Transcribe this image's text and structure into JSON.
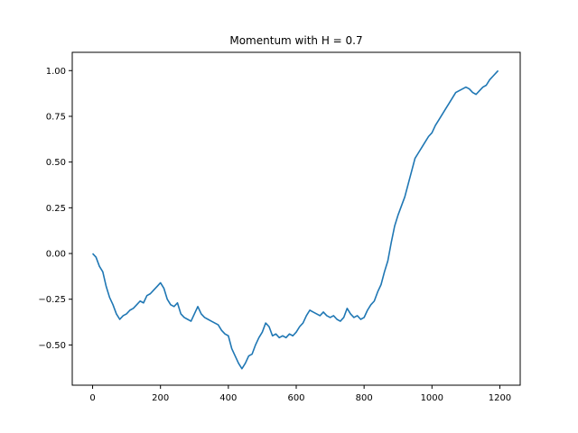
{
  "chart_data": {
    "type": "line",
    "title": "Momentum with H = 0.7",
    "xlabel": "",
    "ylabel": "",
    "xlim": [
      -60,
      1260
    ],
    "ylim": [
      -0.72,
      1.1
    ],
    "grid": false,
    "x_ticks": [
      0,
      200,
      400,
      600,
      800,
      1000,
      1200
    ],
    "x_tick_labels": [
      "0",
      "200",
      "400",
      "600",
      "800",
      "1000",
      "1200"
    ],
    "y_ticks": [
      -0.5,
      -0.25,
      0.0,
      0.25,
      0.5,
      0.75,
      1.0
    ],
    "y_tick_labels": [
      "−0.50",
      "−0.25",
      "0.00",
      "0.25",
      "0.50",
      "0.75",
      "1.00"
    ],
    "series": [
      {
        "color": "#1f77b4",
        "x": [
          0,
          10,
          20,
          30,
          40,
          50,
          60,
          70,
          80,
          90,
          100,
          110,
          120,
          130,
          140,
          150,
          160,
          170,
          180,
          190,
          200,
          210,
          220,
          230,
          240,
          250,
          260,
          270,
          280,
          290,
          300,
          310,
          320,
          330,
          340,
          350,
          360,
          370,
          380,
          390,
          400,
          410,
          420,
          430,
          440,
          450,
          460,
          470,
          480,
          490,
          500,
          510,
          520,
          530,
          540,
          550,
          560,
          570,
          580,
          590,
          600,
          610,
          620,
          630,
          640,
          650,
          660,
          670,
          680,
          690,
          700,
          710,
          720,
          730,
          740,
          750,
          760,
          770,
          780,
          790,
          800,
          810,
          820,
          830,
          840,
          850,
          860,
          870,
          880,
          890,
          900,
          910,
          920,
          930,
          940,
          950,
          960,
          970,
          980,
          990,
          1000,
          1010,
          1020,
          1030,
          1040,
          1050,
          1060,
          1070,
          1080,
          1090,
          1100,
          1110,
          1120,
          1130,
          1140,
          1150,
          1160,
          1170,
          1180,
          1190,
          1195
        ],
        "y": [
          0.0,
          -0.02,
          -0.07,
          -0.1,
          -0.18,
          -0.24,
          -0.28,
          -0.33,
          -0.36,
          -0.34,
          -0.33,
          -0.31,
          -0.3,
          -0.28,
          -0.26,
          -0.27,
          -0.23,
          -0.22,
          -0.2,
          -0.18,
          -0.16,
          -0.19,
          -0.25,
          -0.28,
          -0.29,
          -0.27,
          -0.33,
          -0.35,
          -0.36,
          -0.37,
          -0.33,
          -0.29,
          -0.33,
          -0.35,
          -0.36,
          -0.37,
          -0.38,
          -0.39,
          -0.42,
          -0.44,
          -0.45,
          -0.52,
          -0.56,
          -0.6,
          -0.63,
          -0.6,
          -0.56,
          -0.55,
          -0.5,
          -0.46,
          -0.43,
          -0.38,
          -0.4,
          -0.45,
          -0.44,
          -0.46,
          -0.45,
          -0.46,
          -0.44,
          -0.45,
          -0.43,
          -0.4,
          -0.38,
          -0.34,
          -0.31,
          -0.32,
          -0.33,
          -0.34,
          -0.32,
          -0.34,
          -0.35,
          -0.34,
          -0.36,
          -0.37,
          -0.35,
          -0.3,
          -0.33,
          -0.35,
          -0.34,
          -0.36,
          -0.35,
          -0.31,
          -0.28,
          -0.26,
          -0.21,
          -0.17,
          -0.1,
          -0.04,
          0.06,
          0.15,
          0.21,
          0.26,
          0.31,
          0.38,
          0.45,
          0.52,
          0.55,
          0.58,
          0.61,
          0.64,
          0.66,
          0.7,
          0.73,
          0.76,
          0.79,
          0.82,
          0.85,
          0.88,
          0.89,
          0.9,
          0.91,
          0.9,
          0.88,
          0.87,
          0.89,
          0.91,
          0.92,
          0.95,
          0.97,
          0.99,
          1.0
        ]
      }
    ]
  }
}
